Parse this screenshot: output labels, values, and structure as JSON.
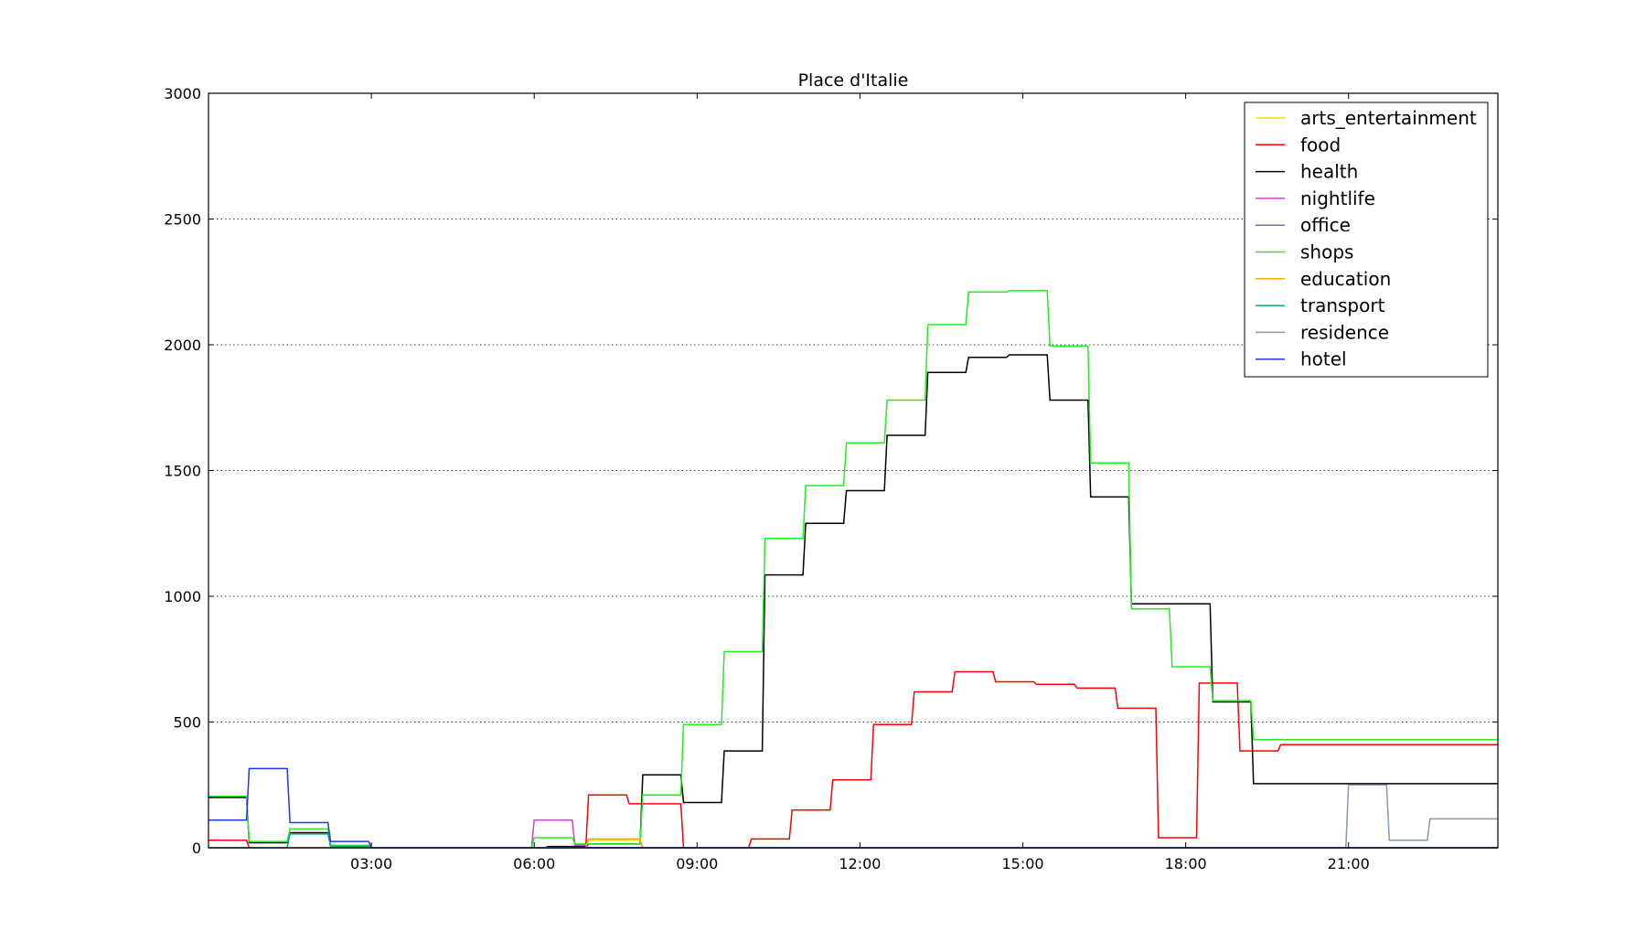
{
  "chart_data": {
    "type": "line",
    "title": "Place d'Italie",
    "xlabel": "",
    "ylabel": "",
    "xlim": [
      0,
      23.75
    ],
    "ylim": [
      0,
      3000
    ],
    "x_tick_values": [
      3,
      6,
      9,
      12,
      15,
      18,
      21
    ],
    "x_tick_labels": [
      "03:00",
      "06:00",
      "09:00",
      "12:00",
      "15:00",
      "18:00",
      "21:00"
    ],
    "y_ticks": [
      0,
      500,
      1000,
      1500,
      2000,
      2500,
      3000
    ],
    "grid": "y-dotted",
    "legend_position": "top-right",
    "x_interval_start": [
      0,
      0.25,
      0.5,
      0.75,
      1,
      1.25,
      1.5,
      1.75,
      2,
      2.25,
      2.5,
      2.75,
      3,
      3.25,
      3.5,
      3.75,
      4,
      4.25,
      4.5,
      4.75,
      5,
      5.25,
      5.5,
      5.75,
      6,
      6.25,
      6.5,
      6.75,
      7,
      7.25,
      7.5,
      7.75,
      8,
      8.25,
      8.5,
      8.75,
      9,
      9.25,
      9.5,
      9.75,
      10,
      10.25,
      10.5,
      10.75,
      11,
      11.25,
      11.5,
      11.75,
      12,
      12.25,
      12.5,
      12.75,
      13,
      13.25,
      13.5,
      13.75,
      14,
      14.25,
      14.5,
      14.75,
      15,
      15.25,
      15.5,
      15.75,
      16,
      16.25,
      16.5,
      16.75,
      17,
      17.25,
      17.5,
      17.75,
      18,
      18.25,
      18.5,
      18.75,
      19,
      19.25,
      19.5,
      19.75,
      20,
      20.25,
      20.5,
      20.75,
      21,
      21.25,
      21.5,
      21.75,
      22,
      22.25,
      22.5,
      22.75,
      23,
      23.25,
      23.5,
      23.75
    ],
    "series": [
      {
        "name": "arts_entertainment",
        "color": "#e6e600",
        "values": [
          0,
          0,
          0,
          0,
          0,
          0,
          0,
          0,
          0,
          0,
          0,
          0,
          0,
          0,
          0,
          0,
          0,
          0,
          0,
          0,
          0,
          0,
          0,
          0,
          0,
          0,
          0,
          0,
          30,
          30,
          30,
          30,
          0,
          0,
          0,
          0,
          0,
          0,
          0,
          0,
          0,
          0,
          0,
          0,
          0,
          0,
          0,
          0,
          0,
          0,
          0,
          0,
          0,
          0,
          0,
          0,
          0,
          0,
          0,
          0,
          0,
          0,
          0,
          0,
          0,
          0,
          0,
          0,
          0,
          0,
          0,
          0,
          0,
          0,
          0,
          0,
          0,
          0,
          0,
          0,
          0,
          0,
          0,
          0,
          0,
          0,
          0,
          0,
          0,
          0,
          0,
          0,
          0,
          0,
          0,
          0
        ]
      },
      {
        "name": "food",
        "color": "#ff0000",
        "values": [
          30,
          30,
          30,
          0,
          0,
          0,
          0,
          0,
          0,
          0,
          0,
          0,
          0,
          0,
          0,
          0,
          0,
          0,
          0,
          0,
          0,
          0,
          0,
          0,
          0,
          0,
          0,
          0,
          210,
          210,
          210,
          175,
          175,
          175,
          175,
          0,
          0,
          0,
          0,
          0,
          35,
          35,
          35,
          150,
          150,
          150,
          270,
          270,
          270,
          490,
          490,
          490,
          620,
          620,
          620,
          700,
          700,
          700,
          660,
          660,
          660,
          650,
          650,
          650,
          635,
          635,
          635,
          555,
          555,
          555,
          40,
          40,
          40,
          655,
          655,
          655,
          385,
          385,
          385,
          410,
          410,
          410,
          410,
          410,
          410,
          410,
          410,
          410,
          410,
          410,
          410,
          410,
          410,
          410,
          410,
          410
        ]
      },
      {
        "name": "health",
        "color": "#000000",
        "values": [
          200,
          200,
          200,
          20,
          20,
          20,
          60,
          60,
          60,
          5,
          5,
          5,
          0,
          0,
          0,
          0,
          0,
          0,
          0,
          0,
          0,
          0,
          0,
          0,
          0,
          5,
          5,
          5,
          15,
          15,
          15,
          15,
          290,
          290,
          290,
          180,
          180,
          180,
          385,
          385,
          385,
          1085,
          1085,
          1085,
          1290,
          1290,
          1290,
          1420,
          1420,
          1420,
          1640,
          1640,
          1640,
          1890,
          1890,
          1890,
          1950,
          1950,
          1950,
          1960,
          1960,
          1960,
          1780,
          1780,
          1780,
          1395,
          1395,
          1395,
          970,
          970,
          970,
          970,
          970,
          970,
          580,
          580,
          580,
          255,
          255,
          255,
          255,
          255,
          255,
          255,
          255,
          255,
          255,
          255,
          255,
          255,
          255,
          255,
          255,
          255,
          255,
          255
        ]
      },
      {
        "name": "nightlife",
        "color": "#cc44cc",
        "values": [
          0,
          0,
          0,
          0,
          0,
          0,
          0,
          0,
          0,
          0,
          0,
          0,
          0,
          0,
          0,
          0,
          0,
          0,
          0,
          0,
          0,
          0,
          0,
          0,
          110,
          110,
          110,
          10,
          0,
          0,
          0,
          0,
          0,
          0,
          0,
          0,
          0,
          0,
          0,
          0,
          0,
          0,
          0,
          0,
          0,
          0,
          0,
          0,
          0,
          0,
          0,
          0,
          0,
          0,
          0,
          0,
          0,
          0,
          0,
          0,
          0,
          0,
          0,
          0,
          0,
          0,
          0,
          0,
          0,
          0,
          0,
          0,
          0,
          0,
          0,
          0,
          0,
          0,
          0,
          0,
          0,
          0,
          0,
          0,
          0,
          0,
          0,
          0,
          0,
          0,
          0,
          0,
          0,
          0,
          0,
          0
        ]
      },
      {
        "name": "office",
        "color": "#6677aa",
        "values": [
          0,
          0,
          0,
          0,
          0,
          0,
          0,
          0,
          0,
          0,
          0,
          0,
          0,
          0,
          0,
          0,
          0,
          0,
          0,
          0,
          0,
          0,
          0,
          0,
          0,
          0,
          0,
          0,
          0,
          0,
          0,
          0,
          0,
          0,
          0,
          0,
          0,
          0,
          0,
          0,
          0,
          0,
          0,
          0,
          0,
          0,
          0,
          0,
          0,
          0,
          0,
          0,
          0,
          0,
          0,
          0,
          0,
          0,
          0,
          0,
          0,
          0,
          0,
          0,
          0,
          0,
          0,
          0,
          0,
          0,
          0,
          0,
          0,
          0,
          0,
          0,
          0,
          0,
          0,
          0,
          0,
          0,
          0,
          0,
          0,
          0,
          0,
          0,
          0,
          0,
          0,
          0,
          0,
          0,
          0,
          0
        ]
      },
      {
        "name": "shops",
        "color": "#22ee22",
        "values": [
          205,
          205,
          205,
          25,
          25,
          25,
          75,
          75,
          75,
          10,
          10,
          10,
          0,
          0,
          0,
          0,
          0,
          0,
          0,
          0,
          0,
          0,
          0,
          0,
          40,
          40,
          40,
          15,
          15,
          15,
          15,
          15,
          210,
          210,
          210,
          490,
          490,
          490,
          780,
          780,
          780,
          1230,
          1230,
          1230,
          1440,
          1440,
          1440,
          1610,
          1610,
          1610,
          1780,
          1780,
          1780,
          2080,
          2080,
          2080,
          2210,
          2210,
          2210,
          2215,
          2215,
          2215,
          1995,
          1995,
          1995,
          1530,
          1530,
          1530,
          950,
          950,
          950,
          720,
          720,
          720,
          585,
          585,
          585,
          430,
          430,
          430,
          430,
          430,
          430,
          430,
          430,
          430,
          430,
          430,
          430,
          430,
          430,
          430,
          430,
          430,
          430,
          430
        ]
      },
      {
        "name": "education",
        "color": "#ffa500",
        "values": [
          0,
          0,
          0,
          0,
          0,
          0,
          0,
          0,
          0,
          0,
          0,
          0,
          0,
          0,
          0,
          0,
          0,
          0,
          0,
          0,
          0,
          0,
          0,
          0,
          0,
          0,
          0,
          0,
          35,
          35,
          35,
          35,
          0,
          0,
          0,
          0,
          0,
          0,
          0,
          0,
          0,
          0,
          0,
          0,
          0,
          0,
          0,
          0,
          0,
          0,
          0,
          0,
          0,
          0,
          0,
          0,
          0,
          0,
          0,
          0,
          0,
          0,
          0,
          0,
          0,
          0,
          0,
          0,
          0,
          0,
          0,
          0,
          0,
          0,
          0,
          0,
          0,
          0,
          0,
          0,
          0,
          0,
          0,
          0,
          0,
          0,
          0,
          0,
          0,
          0,
          0,
          0,
          0,
          0,
          0,
          0
        ]
      },
      {
        "name": "transport",
        "color": "#00aa88",
        "values": [
          0,
          0,
          0,
          0,
          0,
          0,
          55,
          55,
          55,
          5,
          5,
          5,
          0,
          0,
          0,
          0,
          0,
          0,
          0,
          0,
          0,
          0,
          0,
          0,
          0,
          0,
          0,
          0,
          0,
          0,
          0,
          0,
          0,
          0,
          0,
          0,
          0,
          0,
          0,
          0,
          0,
          0,
          0,
          0,
          0,
          0,
          0,
          0,
          0,
          0,
          0,
          0,
          0,
          0,
          0,
          0,
          0,
          0,
          0,
          0,
          0,
          0,
          0,
          0,
          0,
          0,
          0,
          0,
          0,
          0,
          0,
          0,
          0,
          0,
          0,
          0,
          0,
          0,
          0,
          0,
          0,
          0,
          0,
          0,
          0,
          0,
          0,
          0,
          0,
          0,
          0,
          0,
          0,
          0,
          0,
          0
        ]
      },
      {
        "name": "residence",
        "color": "#8899aa",
        "values": [
          0,
          0,
          0,
          0,
          0,
          0,
          0,
          0,
          0,
          0,
          0,
          0,
          0,
          0,
          0,
          0,
          0,
          0,
          0,
          0,
          0,
          0,
          0,
          0,
          0,
          0,
          0,
          0,
          0,
          0,
          0,
          0,
          0,
          0,
          0,
          0,
          0,
          0,
          0,
          0,
          0,
          0,
          0,
          0,
          0,
          0,
          0,
          0,
          0,
          0,
          0,
          0,
          0,
          0,
          0,
          0,
          0,
          0,
          0,
          0,
          0,
          0,
          0,
          0,
          0,
          0,
          0,
          0,
          0,
          0,
          0,
          0,
          0,
          0,
          0,
          0,
          0,
          0,
          0,
          0,
          0,
          0,
          0,
          0,
          250,
          250,
          250,
          30,
          30,
          30,
          115,
          115,
          115,
          115,
          115,
          115
        ]
      },
      {
        "name": "hotel",
        "color": "#2233ee",
        "values": [
          110,
          110,
          110,
          315,
          315,
          315,
          100,
          100,
          100,
          25,
          25,
          25,
          0,
          0,
          0,
          0,
          0,
          0,
          0,
          0,
          0,
          0,
          0,
          0,
          0,
          0,
          0,
          0,
          0,
          0,
          0,
          0,
          0,
          0,
          0,
          0,
          0,
          0,
          0,
          0,
          0,
          0,
          0,
          0,
          0,
          0,
          0,
          0,
          0,
          0,
          0,
          0,
          0,
          0,
          0,
          0,
          0,
          0,
          0,
          0,
          0,
          0,
          0,
          0,
          0,
          0,
          0,
          0,
          0,
          0,
          0,
          0,
          0,
          0,
          0,
          0,
          0,
          0,
          0,
          0,
          0,
          0,
          0,
          0,
          0,
          0,
          0,
          0,
          0,
          0,
          0,
          0,
          0,
          0,
          0,
          0
        ]
      }
    ]
  }
}
